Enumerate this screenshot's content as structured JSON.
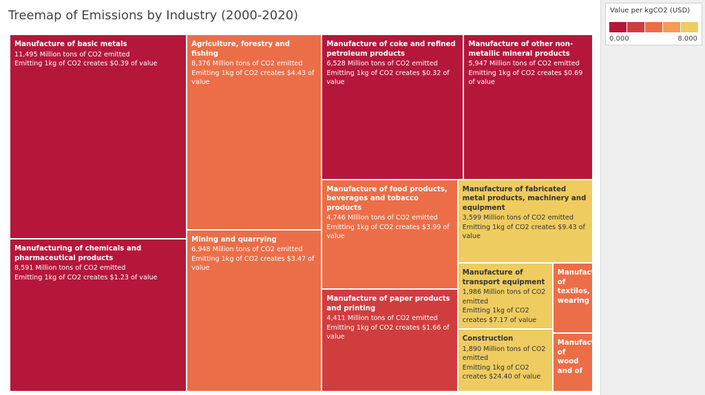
{
  "chart_data": {
    "type": "treemap",
    "title": "Treemap of Emissions by Industry (2000-2020)",
    "categories": [
      "Manufacture of basic metals",
      "Manufacturing of chemicals and pharmaceutical products",
      "Agriculture, forestry and fishing",
      "Mining and quarrying",
      "Manufacture of coke and refined petroleum products",
      "Manufacture of other non-metallic mineral products",
      "Manufacture of food products, beverages and tobacco products",
      "Manufacture of paper products and printing",
      "Manufacture of fabricated metal products, machinery and equipment",
      "Manufacture of transport equipment",
      "Construction",
      "Manufacture of textiles, wearing",
      "Manufacture of wood and of"
    ],
    "values": [
      11495,
      8591,
      8376,
      6948,
      6528,
      5947,
      4746,
      4411,
      3599,
      1986,
      1890,
      894,
      742
    ],
    "value_labels": [
      "11,495 Million tons of CO2 emitted",
      "8,591 Million tons of CO2 emitted",
      "8,376 Million tons of CO2 emitted",
      "6,948 Million tons of CO2 emitted",
      "6,528 Million tons of CO2 emitted",
      "5,947 Million tons of CO2 emitted",
      "4,746 Million tons of CO2 emitted",
      "4,411 Million tons of CO2 emitted",
      "3,599 Million tons of CO2 emitted",
      "1,986 Million tons of CO2 emitted",
      "1,890 Million tons of CO2 emitted",
      null,
      null
    ],
    "color_values": [
      0.39,
      1.23,
      4.43,
      3.47,
      0.32,
      0.69,
      3.99,
      1.66,
      9.43,
      7.17,
      24.4,
      4.0,
      4.0
    ],
    "color_value_labels": [
      "Emitting 1kg of CO2 creates $0.39 of value",
      "Emitting 1kg of CO2 creates $1.23 of value",
      "Emitting 1kg of CO2 creates $4.43 of value",
      "Emitting 1kg of CO2 creates $3.47 of value",
      "Emitting 1kg of CO2 creates $0.32 of value",
      "Emitting 1kg of CO2 creates $0.69 of value",
      "Emitting 1kg of CO2 creates $3.99 of value",
      "Emitting 1kg of CO2 creates $1.66 of value",
      "Emitting 1kg of CO2 creates $9.43 of value",
      "Emitting 1kg of CO2 creates $7.17 of value",
      "Emitting 1kg of CO2 creates $24.40 of value",
      null,
      null
    ],
    "legend": {
      "title": "Value per kgCO2 (USD)",
      "colors": [
        "#b5173b",
        "#d03d3f",
        "#eb6e48",
        "#f59b55",
        "#eecc60"
      ],
      "ticks": [
        {
          "value": 0,
          "label": "0.000"
        },
        {
          "value": 8,
          "label": "8.000"
        }
      ]
    }
  }
}
